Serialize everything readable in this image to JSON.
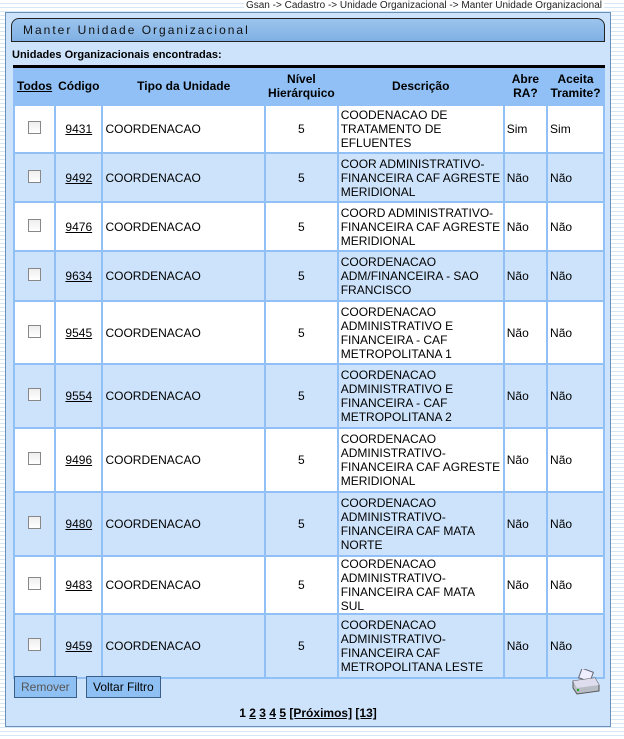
{
  "breadcrumb": "Gsan -> Cadastro -> Unidade Organizacional -> Manter Unidade Organizacional",
  "title": "Manter Unidade Organizacional",
  "found_label": "Unidades Organizacionais encontradas:",
  "headers": {
    "todos": "Todos",
    "codigo": "Código",
    "tipo": "Tipo da Unidade",
    "nivel": "Nível Hierárquico",
    "descricao": "Descrição",
    "abre": "Abre RA?",
    "aceita": "Aceita Tramite?"
  },
  "rows": [
    {
      "codigo": "9431",
      "tipo": "COORDENACAO",
      "nivel": "5",
      "descricao": "COODENACAO DE TRATAMENTO DE EFLUENTES",
      "abre": "Sim",
      "aceita": "Sim"
    },
    {
      "codigo": "9492",
      "tipo": "COORDENACAO",
      "nivel": "5",
      "descricao": "COOR ADMINISTRATIVO-FINANCEIRA CAF AGRESTE MERIDIONAL",
      "abre": "Não",
      "aceita": "Não"
    },
    {
      "codigo": "9476",
      "tipo": "COORDENACAO",
      "nivel": "5",
      "descricao": "COORD ADMINISTRATIVO-FINANCEIRA CAF AGRESTE MERIDIONAL",
      "abre": "Não",
      "aceita": "Não"
    },
    {
      "codigo": "9634",
      "tipo": "COORDENACAO",
      "nivel": "5",
      "descricao": "COORDENACAO ADM/FINANCEIRA - SAO FRANCISCO",
      "abre": "Não",
      "aceita": "Não"
    },
    {
      "codigo": "9545",
      "tipo": "COORDENACAO",
      "nivel": "5",
      "descricao": "COORDENACAO ADMINISTRATIVO E FINANCEIRA - CAF METROPOLITANA 1",
      "abre": "Não",
      "aceita": "Não"
    },
    {
      "codigo": "9554",
      "tipo": "COORDENACAO",
      "nivel": "5",
      "descricao": "COORDENACAO ADMINISTRATIVO E FINANCEIRA - CAF METROPOLITANA 2",
      "abre": "Não",
      "aceita": "Não"
    },
    {
      "codigo": "9496",
      "tipo": "COORDENACAO",
      "nivel": "5",
      "descricao": "COORDENACAO ADMINISTRATIVO-FINANCEIRA CAF AGRESTE MERIDIONAL",
      "abre": "Não",
      "aceita": "Não"
    },
    {
      "codigo": "9480",
      "tipo": "COORDENACAO",
      "nivel": "5",
      "descricao": "COORDENACAO ADMINISTRATIVO-FINANCEIRA CAF MATA NORTE",
      "abre": "Não",
      "aceita": "Não"
    },
    {
      "codigo": "9483",
      "tipo": "COORDENACAO",
      "nivel": "5",
      "descricao": "COORDENACAO ADMINISTRATIVO-FINANCEIRA CAF MATA SUL",
      "abre": "Não",
      "aceita": "Não"
    },
    {
      "codigo": "9459",
      "tipo": "COORDENACAO",
      "nivel": "5",
      "descricao": "COORDENACAO ADMINISTRATIVO-FINANCEIRA CAF METROPOLITANA LESTE",
      "abre": "Não",
      "aceita": "Não"
    }
  ],
  "buttons": {
    "remover": "Remover",
    "voltar": "Voltar Filtro"
  },
  "pagination": {
    "current": "1",
    "pages": [
      "2",
      "3",
      "4",
      "5"
    ],
    "next": "[Próximos]",
    "last": "[13]"
  }
}
